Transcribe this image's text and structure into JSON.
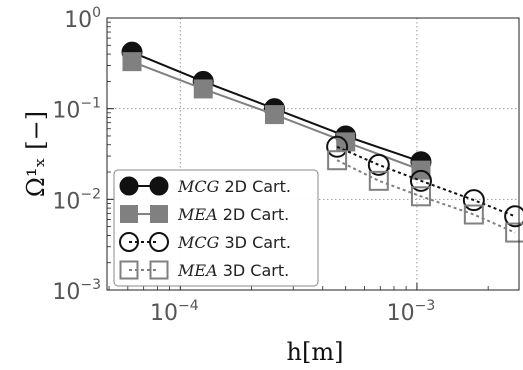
{
  "chart_data": {
    "type": "line",
    "xscale": "log",
    "yscale": "log",
    "xlim": [
      4.9e-05,
      0.0027
    ],
    "ylim": [
      0.001,
      1
    ],
    "grid": true,
    "grid_style": "dotted",
    "xlabel": "h[m]",
    "ylabel": "Ω¹ₓ [−]",
    "x_ticks": [
      {
        "value": 0.0001,
        "base": "10",
        "exp": "−4"
      },
      {
        "value": 0.001,
        "base": "10",
        "exp": "−3"
      }
    ],
    "y_ticks": [
      {
        "value": 1,
        "base": "10",
        "exp": "0"
      },
      {
        "value": 0.1,
        "base": "10",
        "exp": "−1"
      },
      {
        "value": 0.01,
        "base": "10",
        "exp": "−2"
      },
      {
        "value": 0.001,
        "base": "10",
        "exp": "−3"
      }
    ],
    "legend_position": "lower-left",
    "series": [
      {
        "id": "mcg2d",
        "method": "MCG",
        "suffix": " 2D Cart.",
        "color": "#111111",
        "marker": "circle",
        "filled": true,
        "dashed": false,
        "x": [
          6.25e-05,
          0.000125,
          0.00025,
          0.0005,
          0.00104
        ],
        "y": [
          0.42,
          0.2,
          0.1,
          0.05,
          0.026
        ]
      },
      {
        "id": "mea2d",
        "method": "MEA",
        "suffix": " 2D Cart.",
        "color": "#808080",
        "marker": "square",
        "filled": true,
        "dashed": false,
        "x": [
          6.25e-05,
          0.000125,
          0.00025,
          0.0005,
          0.00104
        ],
        "y": [
          0.33,
          0.165,
          0.086,
          0.043,
          0.021
        ]
      },
      {
        "id": "mcg3d",
        "method": "MCG",
        "suffix": " 3D Cart.",
        "color": "#111111",
        "marker": "circle",
        "filled": false,
        "dashed": true,
        "x": [
          0.00046,
          0.00069,
          0.00104,
          0.00174,
          0.0026
        ],
        "y": [
          0.038,
          0.024,
          0.016,
          0.0098,
          0.0065
        ]
      },
      {
        "id": "mea3d",
        "method": "MEA",
        "suffix": " 3D Cart.",
        "color": "#808080",
        "marker": "square",
        "filled": false,
        "dashed": true,
        "x": [
          0.00046,
          0.00069,
          0.00104,
          0.00174,
          0.0026
        ],
        "y": [
          0.027,
          0.016,
          0.0108,
          0.0068,
          0.0043
        ]
      }
    ]
  }
}
